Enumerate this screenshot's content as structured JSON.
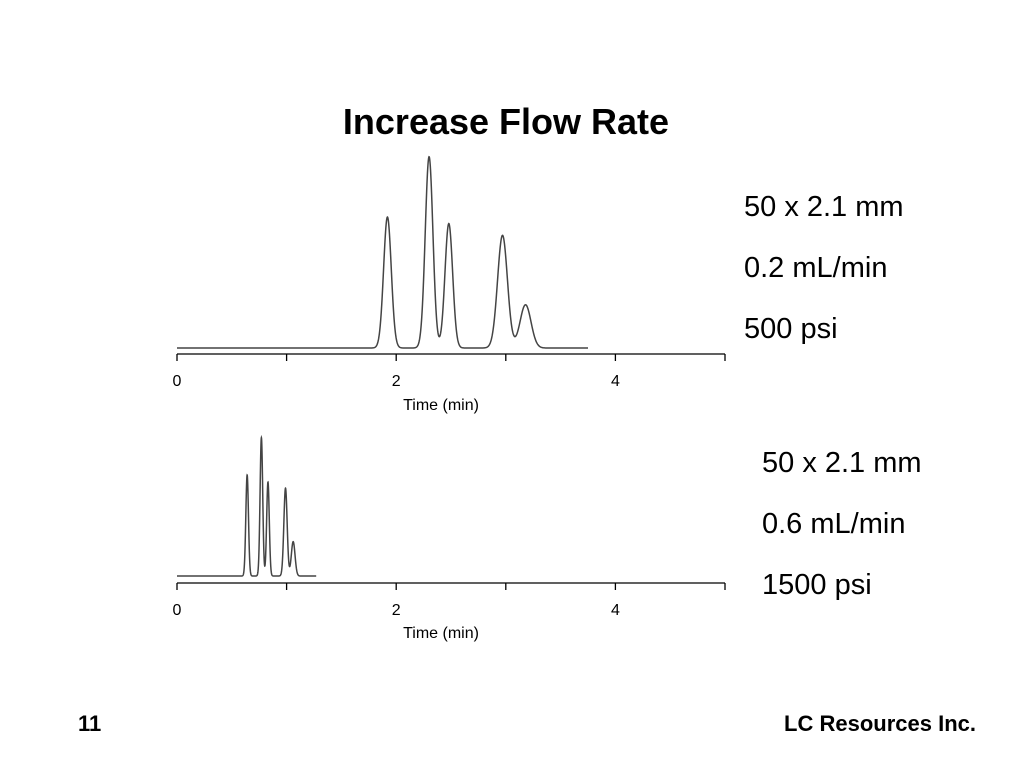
{
  "slide": {
    "title": "Increase Flow Rate",
    "page_number": "11",
    "footer": "LC Resources Inc."
  },
  "conditions": {
    "top": [
      "50 x 2.1 mm",
      "0.2 mL/min",
      "500 psi"
    ],
    "bottom": [
      "50 x 2.1 mm",
      "0.6 mL/min",
      "1500 psi"
    ]
  },
  "chart_data": [
    {
      "type": "line",
      "title": "",
      "xlabel": "Time (min)",
      "ylabel": "",
      "xlim": [
        0,
        5
      ],
      "xticks": [
        0,
        2,
        4
      ],
      "x_range_trace": [
        0,
        3.75
      ],
      "grid": false,
      "peaks": [
        {
          "rt": 1.92,
          "height": 1.0,
          "width": 0.035
        },
        {
          "rt": 2.3,
          "height": 1.46,
          "width": 0.035
        },
        {
          "rt": 2.48,
          "height": 0.95,
          "width": 0.035
        },
        {
          "rt": 2.97,
          "height": 0.86,
          "width": 0.045
        },
        {
          "rt": 3.18,
          "height": 0.33,
          "width": 0.05
        }
      ]
    },
    {
      "type": "line",
      "title": "",
      "xlabel": "Time (min)",
      "ylabel": "",
      "xlim": [
        0,
        5
      ],
      "xticks": [
        0,
        2,
        4
      ],
      "x_range_trace": [
        0,
        1.27
      ],
      "grid": false,
      "peaks": [
        {
          "rt": 0.64,
          "height": 1.0,
          "width": 0.012
        },
        {
          "rt": 0.77,
          "height": 1.37,
          "width": 0.012
        },
        {
          "rt": 0.83,
          "height": 0.93,
          "width": 0.012
        },
        {
          "rt": 0.99,
          "height": 0.87,
          "width": 0.015
        },
        {
          "rt": 1.06,
          "height": 0.34,
          "width": 0.017
        }
      ]
    }
  ]
}
